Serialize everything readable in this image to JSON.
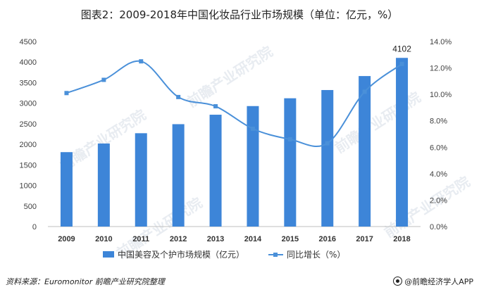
{
  "title": "图表2：2009-2018年中国化妆品行业市场规模（单位：亿元，%）",
  "source": "资料来源：Euromonitor 前瞻产业研究院整理",
  "brand": "@前瞻经济学人APP",
  "watermark": "前瞻产业研究院",
  "colors": {
    "bar": "#3d85d8",
    "line": "#4a90d9",
    "axis": "#bfbfbf",
    "text": "#404040"
  },
  "chart_data": {
    "type": "bar",
    "categories": [
      "2009",
      "2010",
      "2011",
      "2012",
      "2013",
      "2014",
      "2015",
      "2016",
      "2017",
      "2018"
    ],
    "series": [
      {
        "name": "中国美容及个护市场规模（亿元）",
        "type": "bar",
        "axis": "left",
        "values": [
          1810,
          2020,
          2270,
          2490,
          2720,
          2930,
          3120,
          3320,
          3660,
          4102
        ]
      },
      {
        "name": "同比增长（%）",
        "type": "line",
        "axis": "right",
        "values": [
          10.1,
          11.1,
          12.5,
          9.8,
          9.1,
          7.4,
          6.6,
          6.3,
          10.2,
          12.3
        ]
      }
    ],
    "data_labels": [
      {
        "category": "2018",
        "series": 0,
        "text": "4102"
      }
    ],
    "y_left": {
      "min": 0,
      "max": 4500,
      "ticks": [
        0,
        500,
        1000,
        1500,
        2000,
        2500,
        3000,
        3500,
        4000,
        4500
      ]
    },
    "y_right": {
      "min": 0,
      "max": 14,
      "ticks": [
        "0.0%",
        "2.0%",
        "4.0%",
        "6.0%",
        "8.0%",
        "10.0%",
        "12.0%",
        "14.0%"
      ]
    },
    "legend_position": "bottom",
    "grid": false
  }
}
